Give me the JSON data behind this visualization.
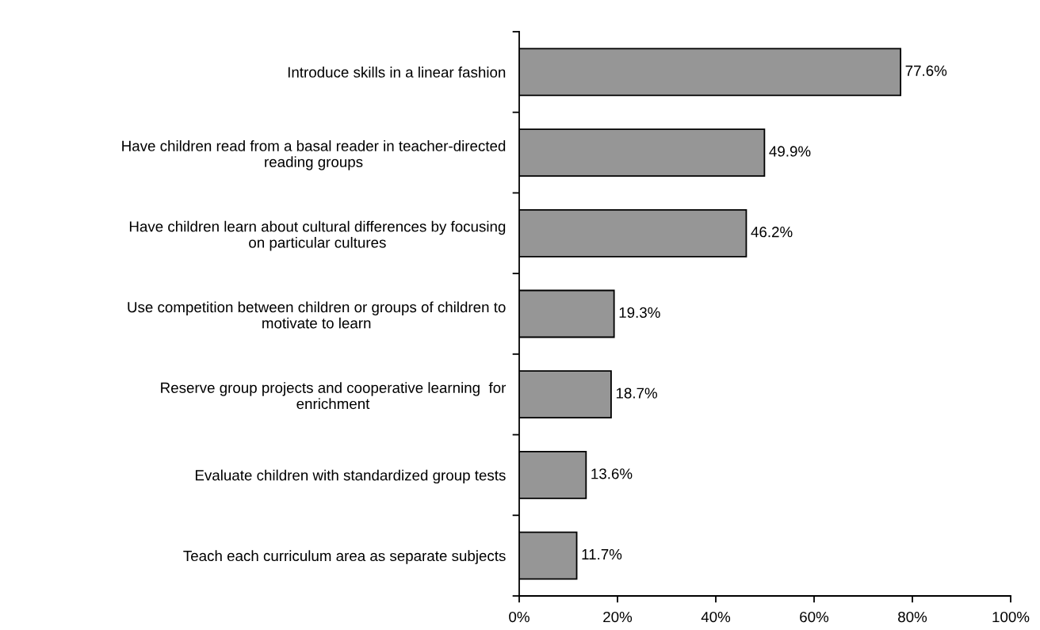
{
  "chart_data": {
    "type": "bar",
    "orientation": "horizontal",
    "categories": [
      "Introduce skills in a linear fashion",
      "Have children read from a basal reader in teacher-directed\nreading groups",
      "Have children learn about cultural differences by focusing\non particular cultures",
      "Use competition between children or groups of children to\nmotivate to learn",
      "Reserve group projects and cooperative learning  for\nenrichment",
      "Evaluate children with standardized group tests",
      "Teach each curriculum area as separate subjects"
    ],
    "values": [
      77.6,
      49.9,
      46.2,
      19.3,
      18.7,
      13.6,
      11.7
    ],
    "value_labels": [
      "77.6%",
      "49.9%",
      "46.2%",
      "19.3%",
      "18.7%",
      "13.6%",
      "11.7%"
    ],
    "color": "#969696",
    "xlim": [
      0,
      100
    ],
    "xticks": [
      {
        "value": 0,
        "label": "0%"
      },
      {
        "value": 20,
        "label": "20%"
      },
      {
        "value": 40,
        "label": "40%"
      },
      {
        "value": 60,
        "label": "60%"
      },
      {
        "value": 80,
        "label": "80%"
      },
      {
        "value": 100,
        "label": "100%"
      }
    ],
    "grid": false,
    "legend": false
  }
}
